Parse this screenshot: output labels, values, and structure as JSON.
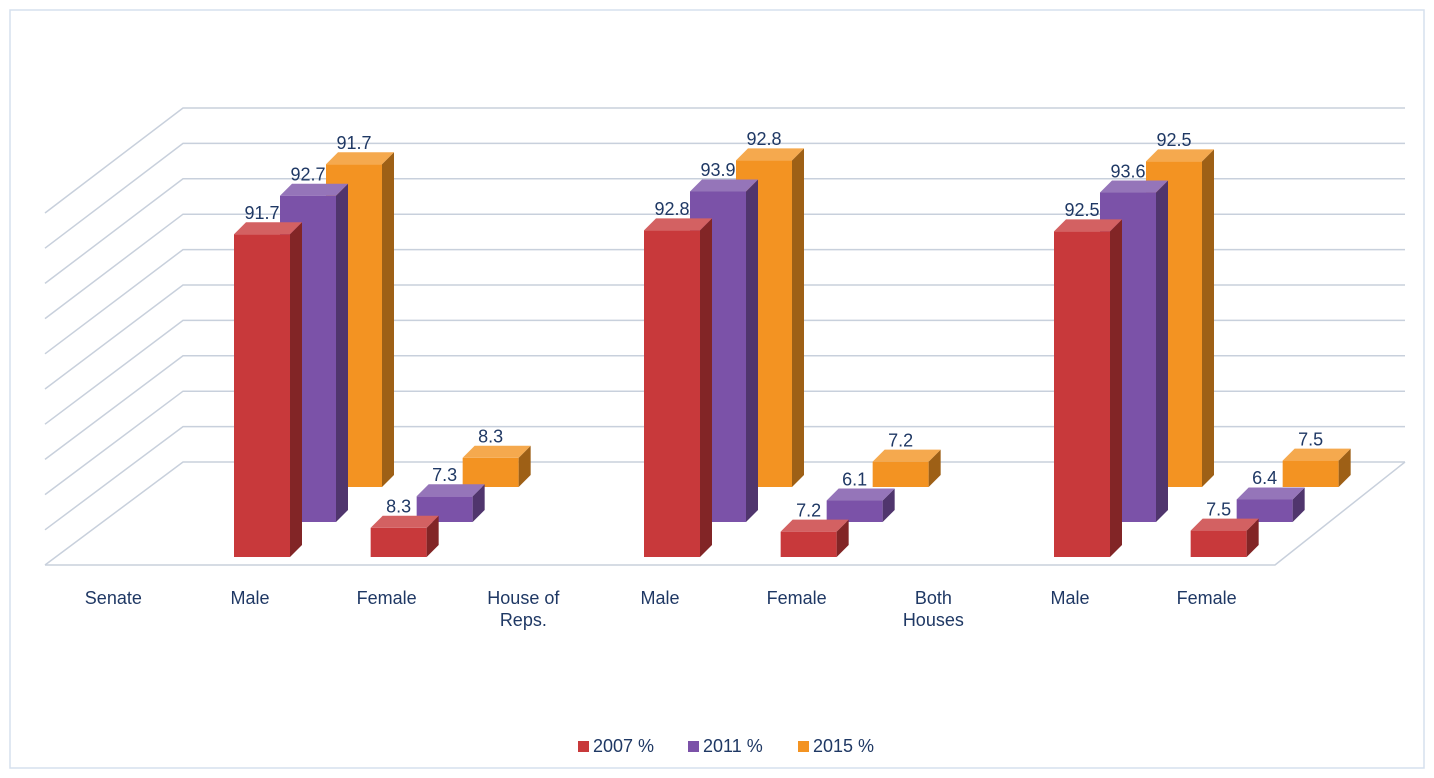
{
  "chart_data": {
    "type": "bar3d",
    "categories": [
      "Senate",
      "Male",
      "Female",
      "House of Reps.",
      "Male",
      "Female",
      "Both Houses",
      "Male",
      "Female"
    ],
    "series": [
      {
        "name": "2007 %",
        "color": "#c8393b",
        "values": [
          null,
          91.7,
          8.3,
          null,
          92.8,
          7.2,
          null,
          92.5,
          7.5
        ]
      },
      {
        "name": "2011 %",
        "color": "#7b52a8",
        "values": [
          null,
          92.7,
          7.3,
          null,
          93.9,
          6.1,
          null,
          93.6,
          6.4
        ]
      },
      {
        "name": "2015 %",
        "color": "#f39322",
        "values": [
          null,
          91.7,
          8.3,
          null,
          92.8,
          7.2,
          null,
          92.5,
          7.5
        ]
      }
    ],
    "ylim": [
      0,
      100
    ],
    "yticks": [
      0,
      10,
      20,
      30,
      40,
      50,
      60,
      70,
      80,
      90,
      100
    ],
    "grid": true
  }
}
